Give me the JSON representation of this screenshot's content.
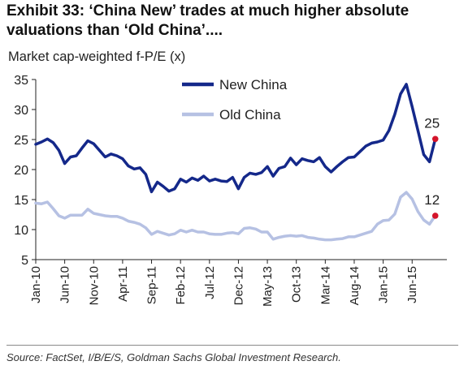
{
  "header": {
    "title_line1": "Exhibit 33: ‘China New’ trades at much higher absolute",
    "title_line2": "valuations than ‘Old China’...."
  },
  "footer": {
    "source": "Source: FactSet, I/B/E/S, Goldman Sachs Global Investment Research."
  },
  "chart_data": {
    "type": "line",
    "ylabel": "Market cap-weighted f-P/E (x)",
    "ylim": [
      5,
      35
    ],
    "yticks": [
      5,
      10,
      15,
      20,
      25,
      30,
      35
    ],
    "xlim": [
      "2010-01",
      "2015-12"
    ],
    "xticks": [
      {
        "date": "2010-01",
        "label": "Jan-10"
      },
      {
        "date": "2010-06",
        "label": "Jun-10"
      },
      {
        "date": "2010-11",
        "label": "Nov-10"
      },
      {
        "date": "2011-04",
        "label": "Apr-11"
      },
      {
        "date": "2011-09",
        "label": "Sep-11"
      },
      {
        "date": "2012-02",
        "label": "Feb-12"
      },
      {
        "date": "2012-07",
        "label": "Jul-12"
      },
      {
        "date": "2012-12",
        "label": "Dec-12"
      },
      {
        "date": "2013-05",
        "label": "May-13"
      },
      {
        "date": "2013-10",
        "label": "Oct-13"
      },
      {
        "date": "2014-03",
        "label": "Mar-14"
      },
      {
        "date": "2014-08",
        "label": "Aug-14"
      },
      {
        "date": "2015-01",
        "label": "Jan-15"
      },
      {
        "date": "2015-06",
        "label": "Jun-15"
      }
    ],
    "legend_position": "top-center",
    "grid": false,
    "series": [
      {
        "name": "New China",
        "color": "#14288a",
        "end_label": "25",
        "points": [
          [
            "2010-01",
            24.2
          ],
          [
            "2010-02",
            24.6
          ],
          [
            "2010-03",
            25.1
          ],
          [
            "2010-04",
            24.5
          ],
          [
            "2010-05",
            23.2
          ],
          [
            "2010-06",
            21.0
          ],
          [
            "2010-07",
            22.1
          ],
          [
            "2010-08",
            22.3
          ],
          [
            "2010-09",
            23.6
          ],
          [
            "2010-10",
            24.8
          ],
          [
            "2010-11",
            24.3
          ],
          [
            "2010-12",
            23.2
          ],
          [
            "2011-01",
            22.1
          ],
          [
            "2011-02",
            22.6
          ],
          [
            "2011-03",
            22.3
          ],
          [
            "2011-04",
            21.8
          ],
          [
            "2011-05",
            20.6
          ],
          [
            "2011-06",
            20.1
          ],
          [
            "2011-07",
            20.3
          ],
          [
            "2011-08",
            19.2
          ],
          [
            "2011-09",
            16.3
          ],
          [
            "2011-10",
            17.9
          ],
          [
            "2011-11",
            17.2
          ],
          [
            "2011-12",
            16.4
          ],
          [
            "2012-01",
            16.8
          ],
          [
            "2012-02",
            18.4
          ],
          [
            "2012-03",
            17.9
          ],
          [
            "2012-04",
            18.6
          ],
          [
            "2012-05",
            18.2
          ],
          [
            "2012-06",
            18.9
          ],
          [
            "2012-07",
            18.1
          ],
          [
            "2012-08",
            18.4
          ],
          [
            "2012-09",
            18.1
          ],
          [
            "2012-10",
            18.0
          ],
          [
            "2012-11",
            18.7
          ],
          [
            "2012-12",
            16.8
          ],
          [
            "2013-01",
            18.7
          ],
          [
            "2013-02",
            19.4
          ],
          [
            "2013-03",
            19.2
          ],
          [
            "2013-04",
            19.5
          ],
          [
            "2013-05",
            20.5
          ],
          [
            "2013-06",
            18.9
          ],
          [
            "2013-07",
            20.2
          ],
          [
            "2013-08",
            20.5
          ],
          [
            "2013-09",
            21.9
          ],
          [
            "2013-10",
            20.8
          ],
          [
            "2013-11",
            21.8
          ],
          [
            "2013-12",
            21.5
          ],
          [
            "2014-01",
            21.3
          ],
          [
            "2014-02",
            22.0
          ],
          [
            "2014-03",
            20.5
          ],
          [
            "2014-04",
            19.6
          ],
          [
            "2014-05",
            20.5
          ],
          [
            "2014-06",
            21.3
          ],
          [
            "2014-07",
            22.0
          ],
          [
            "2014-08",
            22.1
          ],
          [
            "2014-09",
            23.0
          ],
          [
            "2014-10",
            23.9
          ],
          [
            "2014-11",
            24.4
          ],
          [
            "2014-12",
            24.6
          ],
          [
            "2015-01",
            24.9
          ],
          [
            "2015-02",
            26.5
          ],
          [
            "2015-03",
            29.2
          ],
          [
            "2015-04",
            32.6
          ],
          [
            "2015-05",
            34.2
          ],
          [
            "2015-06",
            30.5
          ],
          [
            "2015-07",
            26.5
          ],
          [
            "2015-08",
            22.5
          ],
          [
            "2015-09",
            21.3
          ],
          [
            "2015-10",
            25.1
          ]
        ]
      },
      {
        "name": "Old China",
        "color": "#b6c1e3",
        "end_label": "12",
        "points": [
          [
            "2010-01",
            14.4
          ],
          [
            "2010-02",
            14.3
          ],
          [
            "2010-03",
            14.6
          ],
          [
            "2010-04",
            13.5
          ],
          [
            "2010-05",
            12.3
          ],
          [
            "2010-06",
            11.9
          ],
          [
            "2010-07",
            12.4
          ],
          [
            "2010-08",
            12.4
          ],
          [
            "2010-09",
            12.4
          ],
          [
            "2010-10",
            13.4
          ],
          [
            "2010-11",
            12.7
          ],
          [
            "2010-12",
            12.5
          ],
          [
            "2011-01",
            12.3
          ],
          [
            "2011-02",
            12.2
          ],
          [
            "2011-03",
            12.2
          ],
          [
            "2011-04",
            11.9
          ],
          [
            "2011-05",
            11.4
          ],
          [
            "2011-06",
            11.2
          ],
          [
            "2011-07",
            10.9
          ],
          [
            "2011-08",
            10.3
          ],
          [
            "2011-09",
            9.2
          ],
          [
            "2011-10",
            9.7
          ],
          [
            "2011-11",
            9.4
          ],
          [
            "2011-12",
            9.1
          ],
          [
            "2012-01",
            9.3
          ],
          [
            "2012-02",
            9.9
          ],
          [
            "2012-03",
            9.6
          ],
          [
            "2012-04",
            9.9
          ],
          [
            "2012-05",
            9.6
          ],
          [
            "2012-06",
            9.6
          ],
          [
            "2012-07",
            9.3
          ],
          [
            "2012-08",
            9.2
          ],
          [
            "2012-09",
            9.2
          ],
          [
            "2012-10",
            9.4
          ],
          [
            "2012-11",
            9.5
          ],
          [
            "2012-12",
            9.3
          ],
          [
            "2013-01",
            10.2
          ],
          [
            "2013-02",
            10.3
          ],
          [
            "2013-03",
            10.1
          ],
          [
            "2013-04",
            9.6
          ],
          [
            "2013-05",
            9.6
          ],
          [
            "2013-06",
            8.4
          ],
          [
            "2013-07",
            8.7
          ],
          [
            "2013-08",
            8.9
          ],
          [
            "2013-09",
            9.0
          ],
          [
            "2013-10",
            8.9
          ],
          [
            "2013-11",
            9.0
          ],
          [
            "2013-12",
            8.7
          ],
          [
            "2014-01",
            8.6
          ],
          [
            "2014-02",
            8.4
          ],
          [
            "2014-03",
            8.3
          ],
          [
            "2014-04",
            8.3
          ],
          [
            "2014-05",
            8.4
          ],
          [
            "2014-06",
            8.5
          ],
          [
            "2014-07",
            8.8
          ],
          [
            "2014-08",
            8.8
          ],
          [
            "2014-09",
            9.1
          ],
          [
            "2014-10",
            9.4
          ],
          [
            "2014-11",
            9.7
          ],
          [
            "2014-12",
            10.9
          ],
          [
            "2015-01",
            11.5
          ],
          [
            "2015-02",
            11.6
          ],
          [
            "2015-03",
            12.6
          ],
          [
            "2015-04",
            15.4
          ],
          [
            "2015-05",
            16.2
          ],
          [
            "2015-06",
            15.1
          ],
          [
            "2015-07",
            13.0
          ],
          [
            "2015-08",
            11.6
          ],
          [
            "2015-09",
            10.9
          ],
          [
            "2015-10",
            12.3
          ]
        ]
      }
    ],
    "end_marker_color": "#d4142b"
  }
}
